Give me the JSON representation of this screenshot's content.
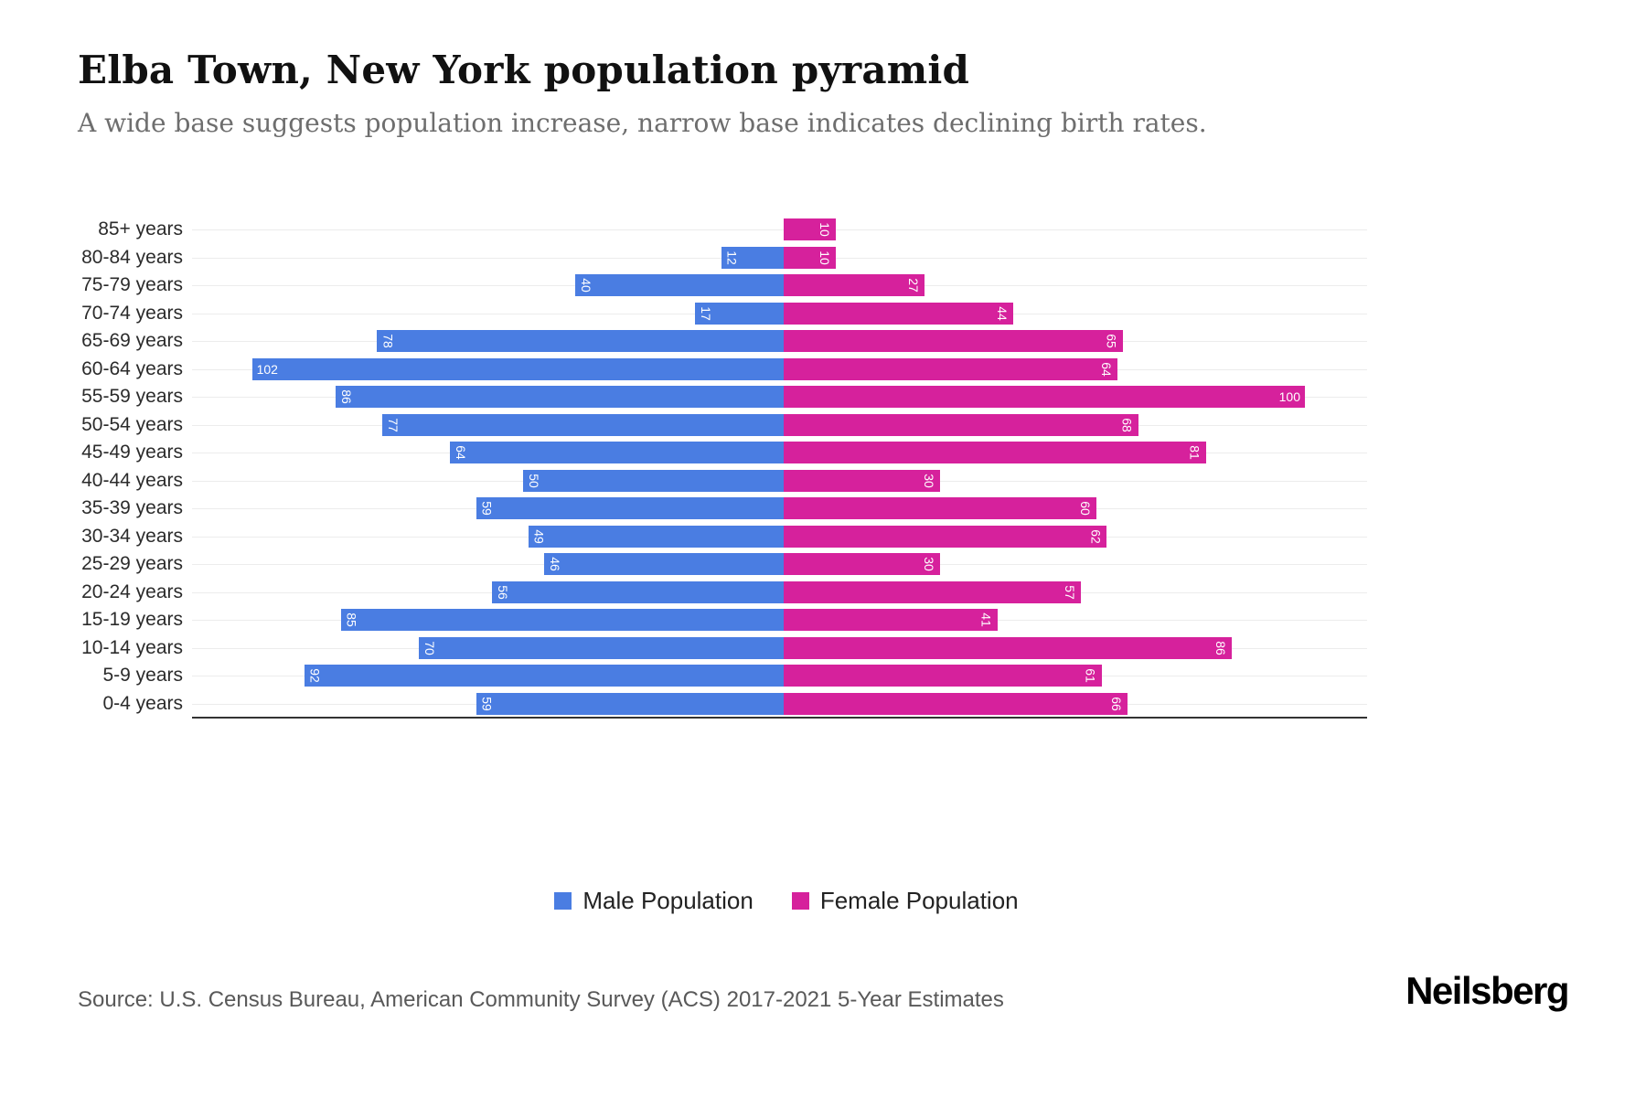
{
  "title": "Elba Town, New York population pyramid",
  "subtitle": "A wide base suggests population increase, narrow base indicates declining birth rates.",
  "legend": {
    "male": "Male Population",
    "female": "Female Population"
  },
  "source": "Source: U.S. Census Bureau, American Community Survey (ACS) 2017-2021 5-Year Estimates",
  "logo": "Neilsberg",
  "colors": {
    "male": "#4a7de2",
    "female": "#d6219c",
    "gridline": "#ececec",
    "axis": "#333333"
  },
  "chart_data": {
    "type": "bar",
    "orientation": "horizontal population pyramid (male left, female right)",
    "title": "Elba Town, New York population pyramid",
    "categories": [
      "85+ years",
      "80-84 years",
      "75-79 years",
      "70-74 years",
      "65-69 years",
      "60-64 years",
      "55-59 years",
      "50-54 years",
      "45-49 years",
      "40-44 years",
      "35-39 years",
      "30-34 years",
      "25-29 years",
      "20-24 years",
      "15-19 years",
      "10-14 years",
      "5-9 years",
      "0-4 years"
    ],
    "series": [
      {
        "name": "Male Population",
        "values": [
          0,
          12,
          40,
          17,
          78,
          102,
          86,
          77,
          64,
          50,
          59,
          49,
          46,
          56,
          85,
          70,
          92,
          59
        ]
      },
      {
        "name": "Female Population",
        "values": [
          10,
          10,
          27,
          44,
          65,
          64,
          100,
          68,
          81,
          30,
          60,
          62,
          30,
          57,
          41,
          86,
          61,
          66
        ]
      }
    ],
    "value_axis_max_each_side": 113,
    "grid": "horizontal light gridlines at each category, dark bottom axis line",
    "legend_position": "bottom center",
    "bar_labels": "values shown in white inside bar ends, rotated vertical for 1-2 digit values"
  }
}
